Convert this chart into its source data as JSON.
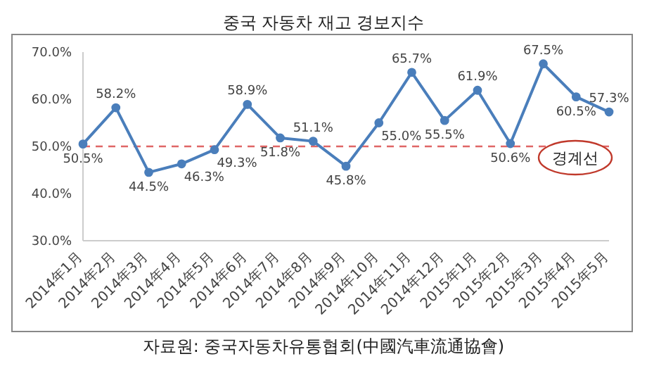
{
  "chart_data": {
    "type": "line",
    "title": "중국 자동차 재고 경보지수",
    "categories": [
      "2014年1月",
      "2014年2月",
      "2014年3月",
      "2014年4月",
      "2014年5月",
      "2014年6月",
      "2014年7月",
      "2014年8月",
      "2014年9月",
      "2014年10月",
      "2014年11月",
      "2014年12月",
      "2015年1月",
      "2015年2月",
      "2015年3月",
      "2015年4月",
      "2015年5月"
    ],
    "series": [
      {
        "color": "#4a7ebb",
        "values": [
          50.5,
          58.2,
          44.5,
          46.3,
          49.3,
          58.9,
          51.8,
          51.1,
          45.8,
          55.0,
          65.7,
          55.5,
          61.9,
          50.6,
          67.5,
          60.5,
          57.3
        ],
        "value_labels": [
          "50.5%",
          "58.2%",
          "44.5%",
          "46.3%",
          "49.3%",
          "58.9%",
          "51.8%",
          "51.1%",
          "45.8%",
          "55.0%",
          "65.7%",
          "55.5%",
          "61.9%",
          "50.6%",
          "67.5%",
          "60.5%",
          "57.3%"
        ]
      }
    ],
    "ylim": [
      30,
      70
    ],
    "yticks": [
      {
        "value": 30,
        "label": "30.0%"
      },
      {
        "value": 40,
        "label": "40.0%"
      },
      {
        "value": 50,
        "label": "50.0%"
      },
      {
        "value": 60,
        "label": "60.0%"
      },
      {
        "value": 70,
        "label": "70.0%"
      }
    ],
    "ref_lines": [
      {
        "axis": "y",
        "value": 50,
        "label": "경계선",
        "color": "#e06666",
        "line_style": "dashed"
      }
    ],
    "marker": "circle",
    "line_style": "solid",
    "annotations": [
      "자료원: 중국자동차유통협회(中國汽車流通協會)"
    ]
  }
}
